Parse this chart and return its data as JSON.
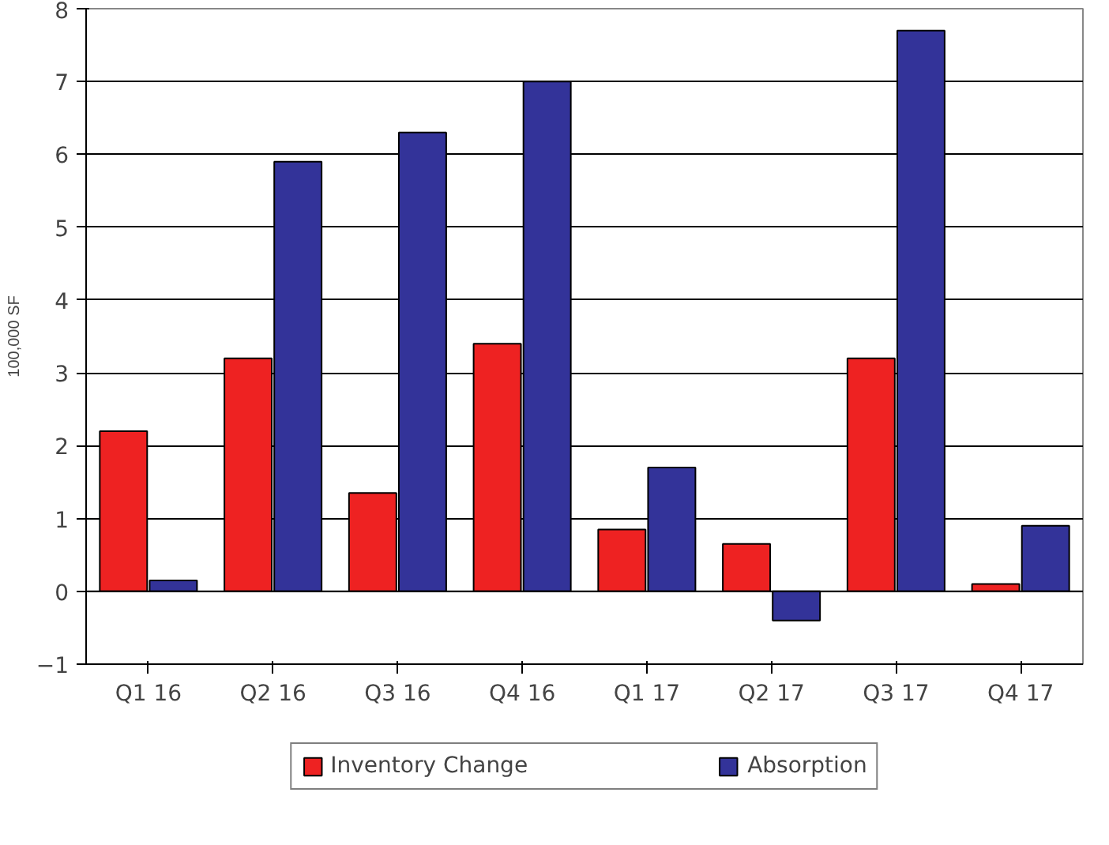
{
  "chart_data": {
    "type": "bar",
    "ylabel": "100,000 SF",
    "categories": [
      "Q1 16",
      "Q2 16",
      "Q3 16",
      "Q4 16",
      "Q1 17",
      "Q2 17",
      "Q3 17",
      "Q4 17"
    ],
    "series": [
      {
        "name": "Inventory Change",
        "color": "#ee2222",
        "values": [
          2.2,
          3.2,
          1.35,
          3.4,
          0.85,
          0.65,
          3.2,
          0.1
        ]
      },
      {
        "name": "Absorption",
        "color": "#333399",
        "values": [
          0.15,
          5.9,
          6.3,
          7.0,
          1.7,
          -0.4,
          7.7,
          0.9
        ]
      }
    ],
    "ylim": [
      -1,
      8
    ],
    "yticks": [
      -1,
      0,
      1,
      2,
      3,
      4,
      5,
      6,
      7,
      8
    ],
    "grid": "y",
    "legend": "bottom"
  }
}
